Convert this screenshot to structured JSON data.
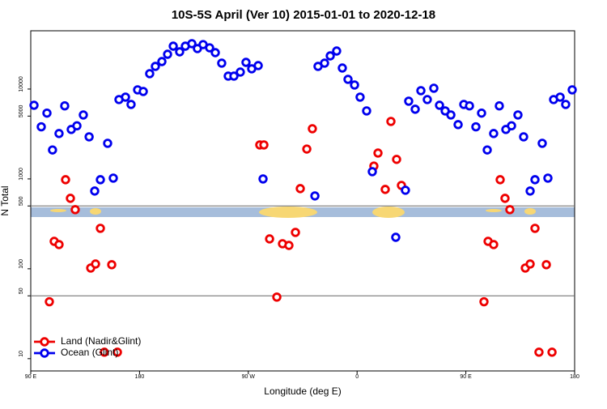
{
  "chart_data": {
    "type": "scatter",
    "title": "10S-5S April (Ver 10)   2015-01-01 to 2020-12-18",
    "xlabel": "Longitude (deg E)",
    "ylabel": "N Total",
    "xlim": [
      90,
      540
    ],
    "ylim": [
      7.3,
      44500
    ],
    "log_y": true,
    "xticks": [
      {
        "value": 90,
        "label": "90 E"
      },
      180,
      {
        "value": 270,
        "label": "90 W"
      },
      {
        "value": 360,
        "label": "0"
      },
      {
        "value": 450,
        "label": "90 E"
      },
      {
        "value": 540,
        "label": "180"
      }
    ],
    "yticks": [
      10,
      50,
      100,
      500,
      1000,
      5000,
      10000
    ],
    "hlines": [
      50,
      500
    ],
    "legend": "bottom-left",
    "series": [
      {
        "name": "Land (Nadir&Glint)",
        "color": "#ee0000",
        "x": [
          105.4,
          109.4,
          113.4,
          118.8,
          122.8,
          126.8,
          139.6,
          143.6,
          147.6,
          150.9,
          157.0,
          161.7,
          279.5,
          282.9,
          287.6,
          293.6,
          298.3,
          303.6,
          309.0,
          313.0,
          318.4,
          323.0,
          373.9,
          377.3,
          383.3,
          388.0,
          392.7,
          396.7,
          465.0,
          468.4,
          473.0,
          478.4,
          482.4,
          486.4,
          499.2,
          503.2,
          507.2,
          510.5,
          516.6,
          521.3
        ],
        "values": [
          43,
          202,
          186,
          980,
          608,
          455,
          102,
          113,
          282,
          11.8,
          111,
          11.8,
          2390,
          2390,
          215,
          48.4,
          190,
          182,
          254,
          780,
          2150,
          3620,
          1390,
          1940,
          764,
          4360,
          1650,
          847,
          43,
          202,
          186,
          980,
          608,
          455,
          102,
          113,
          282,
          11.8,
          111,
          11.8
        ]
      },
      {
        "name": "Ocean (Glint)",
        "color": "#0000ee",
        "x": [
          92.7,
          98.7,
          103.4,
          108.0,
          113.4,
          118.1,
          123.5,
          128.2,
          133.5,
          138.3,
          142.9,
          147.6,
          153.6,
          158.3,
          163.0,
          168.4,
          173.0,
          178.4,
          183.1,
          188.4,
          193.1,
          198.5,
          203.2,
          207.9,
          213.2,
          217.9,
          223.3,
          227.9,
          232.6,
          238.0,
          242.7,
          248.0,
          253.4,
          258.1,
          263.4,
          268.1,
          272.8,
          278.2,
          282.2,
          325.1,
          327.7,
          333.1,
          337.8,
          343.1,
          347.8,
          352.5,
          357.9,
          362.5,
          367.9,
          372.6,
          392.0,
          400.0,
          402.7,
          408.1,
          412.8,
          418.1,
          423.5,
          428.2,
          432.9,
          437.6,
          443.6,
          448.3,
          453.0,
          458.3,
          463.0,
          467.7,
          473.0,
          477.7,
          483.1,
          487.8,
          493.1,
          497.8,
          503.2,
          507.2,
          513.2,
          517.9,
          522.6,
          528.0,
          532.6,
          538.0
        ],
        "values": [
          6600,
          3800,
          5400,
          2100,
          3200,
          6500,
          3550,
          3900,
          5150,
          2940,
          733,
          980,
          2490,
          1020,
          7640,
          8130,
          6740,
          9800,
          9400,
          14830,
          17870,
          20230,
          24380,
          30000,
          25940,
          30000,
          31990,
          28200,
          31260,
          28770,
          25410,
          19410,
          13930,
          13930,
          15450,
          19810,
          16790,
          18240,
          1000,
          647,
          17870,
          19410,
          23390,
          26490,
          17140,
          12820,
          11090,
          8130,
          5710,
          1205,
          224,
          748,
          7330,
          5960,
          9590,
          7640,
          10210,
          6600,
          5710,
          5150,
          4020,
          6740,
          6500,
          3800,
          5400,
          2100,
          3200,
          6500,
          3550,
          3900,
          5150,
          2940,
          733,
          980,
          2490,
          1020,
          7640,
          8130,
          6740,
          9800
        ]
      }
    ]
  }
}
